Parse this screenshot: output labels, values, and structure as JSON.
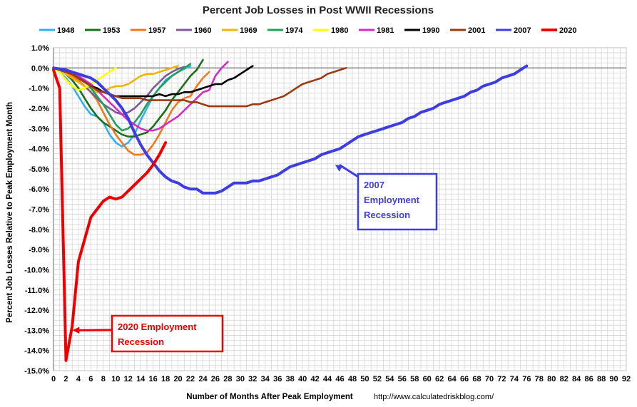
{
  "chart_data": {
    "type": "line",
    "title": "Percent Job Losses in Post WWII Recessions",
    "xlabel": "Number of Months After Peak Employment",
    "ylabel": "Percent Job Losses Relative to Peak Employment Month",
    "source": "http://www.calculatedriskblog.com/",
    "xlim": [
      0,
      92
    ],
    "ylim": [
      -15,
      1
    ],
    "x_ticks": [
      0,
      2,
      4,
      6,
      8,
      10,
      12,
      14,
      16,
      18,
      20,
      22,
      24,
      26,
      28,
      30,
      32,
      34,
      36,
      38,
      40,
      42,
      44,
      46,
      48,
      50,
      52,
      54,
      56,
      58,
      60,
      62,
      64,
      66,
      68,
      70,
      72,
      74,
      76,
      78,
      80,
      82,
      84,
      86,
      88,
      90,
      92
    ],
    "y_ticks": [
      1,
      0,
      -1,
      -2,
      -3,
      -4,
      -5,
      -6,
      -7,
      -8,
      -9,
      -10,
      -11,
      -12,
      -13,
      -14,
      -15
    ],
    "y_tick_labels": [
      "1.0%",
      "0.0%",
      "-1.0%",
      "-2.0%",
      "-3.0%",
      "-4.0%",
      "-5.0%",
      "-6.0%",
      "-7.0%",
      "-8.0%",
      "-9.0%",
      "-10.0%",
      "-11.0%",
      "-12.0%",
      "-13.0%",
      "-14.0%",
      "-15.0%"
    ],
    "grid": true,
    "legend_position": "top",
    "series": [
      {
        "name": "1948",
        "color": "#33b0f0",
        "x": [
          0,
          1,
          2,
          3,
          4,
          5,
          6,
          7,
          8,
          9,
          10,
          11,
          12,
          13,
          14,
          15,
          16,
          17,
          18,
          19,
          20,
          21,
          22
        ],
        "y": [
          0,
          -0.2,
          -0.5,
          -0.9,
          -1.4,
          -1.9,
          -2.3,
          -2.4,
          -2.7,
          -3.3,
          -3.7,
          -3.9,
          -3.7,
          -3.3,
          -2.6,
          -2.0,
          -1.4,
          -1.0,
          -0.6,
          -0.4,
          -0.2,
          -0.05,
          0.1
        ]
      },
      {
        "name": "1953",
        "color": "#1b6f1b",
        "x": [
          0,
          1,
          2,
          3,
          4,
          5,
          6,
          7,
          8,
          9,
          10,
          11,
          12,
          13,
          14,
          15,
          16,
          17,
          18,
          19,
          20,
          21,
          22,
          23,
          24
        ],
        "y": [
          0,
          -0.1,
          -0.3,
          -0.6,
          -1.0,
          -1.5,
          -2.0,
          -2.4,
          -2.7,
          -2.9,
          -3.1,
          -3.3,
          -3.4,
          -3.4,
          -3.3,
          -3.2,
          -2.9,
          -2.5,
          -2.1,
          -1.6,
          -1.2,
          -0.8,
          -0.4,
          -0.1,
          0.4
        ]
      },
      {
        "name": "1957",
        "color": "#f07820",
        "x": [
          0,
          1,
          2,
          3,
          4,
          5,
          6,
          7,
          8,
          9,
          10,
          11,
          12,
          13,
          14,
          15,
          16,
          17,
          18,
          19,
          20,
          21,
          22,
          23,
          24,
          25
        ],
        "y": [
          0,
          -0.1,
          -0.2,
          -0.4,
          -0.6,
          -0.9,
          -1.2,
          -1.6,
          -2.2,
          -2.8,
          -3.3,
          -3.7,
          -4.1,
          -4.3,
          -4.3,
          -4.2,
          -3.8,
          -3.3,
          -2.7,
          -2.1,
          -1.7,
          -1.5,
          -1.4,
          -0.9,
          -0.5,
          -0.2
        ]
      },
      {
        "name": "1960",
        "color": "#7a5a9a",
        "x": [
          0,
          1,
          2,
          3,
          4,
          5,
          6,
          7,
          8,
          9,
          10,
          11,
          12,
          13,
          14,
          15,
          16,
          17,
          18,
          19,
          20,
          21
        ],
        "y": [
          0,
          -0.1,
          -0.3,
          -0.5,
          -0.7,
          -0.9,
          -1.2,
          -1.5,
          -1.8,
          -2.0,
          -2.2,
          -2.3,
          -2.2,
          -2.0,
          -1.7,
          -1.4,
          -1.0,
          -0.7,
          -0.4,
          -0.2,
          -0.05,
          0.05
        ]
      },
      {
        "name": "1969",
        "color": "#f0b400",
        "x": [
          0,
          1,
          2,
          3,
          4,
          5,
          6,
          7,
          8,
          9,
          10,
          11,
          12,
          13,
          14,
          15,
          16,
          17,
          18,
          19,
          20
        ],
        "y": [
          0,
          -0.1,
          -0.3,
          -0.5,
          -0.7,
          -0.9,
          -1.0,
          -1.2,
          -1.2,
          -1.0,
          -0.9,
          -0.9,
          -0.8,
          -0.6,
          -0.4,
          -0.3,
          -0.3,
          -0.2,
          -0.1,
          0.0,
          0.1
        ]
      },
      {
        "name": "1974",
        "color": "#22a05a",
        "x": [
          0,
          1,
          2,
          3,
          4,
          5,
          6,
          7,
          8,
          9,
          10,
          11,
          12,
          13,
          14,
          15,
          16,
          17,
          18,
          19,
          20,
          21,
          22
        ],
        "y": [
          0,
          -0.05,
          -0.1,
          -0.2,
          -0.4,
          -0.6,
          -1.0,
          -1.4,
          -1.8,
          -2.3,
          -2.8,
          -3.1,
          -3.0,
          -2.7,
          -2.3,
          -1.8,
          -1.4,
          -1.0,
          -0.7,
          -0.4,
          -0.2,
          0.0,
          0.2
        ]
      },
      {
        "name": "1980",
        "color": "#ffff00",
        "x": [
          0,
          1,
          2,
          3,
          4,
          5,
          6,
          7,
          8,
          9,
          10
        ],
        "y": [
          0,
          -0.2,
          -0.6,
          -0.9,
          -1.1,
          -1.0,
          -0.8,
          -0.6,
          -0.4,
          -0.2,
          0.0
        ]
      },
      {
        "name": "1981",
        "color": "#d62ac0",
        "x": [
          0,
          1,
          2,
          3,
          4,
          5,
          6,
          7,
          8,
          9,
          10,
          11,
          12,
          13,
          14,
          15,
          16,
          17,
          18,
          19,
          20,
          21,
          22,
          23,
          24,
          25,
          26,
          27,
          28
        ],
        "y": [
          0,
          -0.1,
          -0.2,
          -0.3,
          -0.4,
          -0.6,
          -0.8,
          -1.1,
          -1.4,
          -1.7,
          -2.0,
          -2.3,
          -2.6,
          -2.8,
          -3.0,
          -3.1,
          -3.1,
          -3.0,
          -2.8,
          -2.6,
          -2.4,
          -2.1,
          -1.8,
          -1.5,
          -1.2,
          -1.1,
          -0.4,
          0.0,
          0.3
        ]
      },
      {
        "name": "1990",
        "color": "#000000",
        "x": [
          0,
          1,
          2,
          3,
          4,
          5,
          6,
          7,
          8,
          9,
          10,
          11,
          12,
          13,
          14,
          15,
          16,
          17,
          18,
          19,
          20,
          21,
          22,
          23,
          24,
          25,
          26,
          27,
          28,
          29,
          30,
          31,
          32
        ],
        "y": [
          0,
          -0.1,
          -0.2,
          -0.3,
          -0.5,
          -0.7,
          -0.9,
          -1.0,
          -1.2,
          -1.3,
          -1.4,
          -1.4,
          -1.4,
          -1.4,
          -1.4,
          -1.4,
          -1.4,
          -1.3,
          -1.4,
          -1.3,
          -1.3,
          -1.2,
          -1.2,
          -1.1,
          -1.0,
          -0.9,
          -0.8,
          -0.8,
          -0.6,
          -0.5,
          -0.3,
          -0.1,
          0.1
        ]
      },
      {
        "name": "2001",
        "color": "#9a3a10",
        "x": [
          0,
          1,
          2,
          3,
          4,
          5,
          6,
          7,
          8,
          9,
          10,
          11,
          12,
          13,
          14,
          15,
          16,
          17,
          18,
          19,
          20,
          21,
          22,
          23,
          24,
          25,
          26,
          27,
          28,
          29,
          30,
          31,
          32,
          33,
          34,
          35,
          36,
          37,
          38,
          39,
          40,
          41,
          42,
          43,
          44,
          45,
          46,
          47
        ],
        "y": [
          0,
          -0.1,
          -0.2,
          -0.3,
          -0.5,
          -0.7,
          -0.9,
          -1.1,
          -1.2,
          -1.3,
          -1.4,
          -1.5,
          -1.5,
          -1.5,
          -1.5,
          -1.6,
          -1.6,
          -1.6,
          -1.6,
          -1.6,
          -1.6,
          -1.6,
          -1.7,
          -1.7,
          -1.8,
          -1.9,
          -1.9,
          -1.9,
          -1.9,
          -1.9,
          -1.9,
          -1.9,
          -1.8,
          -1.8,
          -1.7,
          -1.6,
          -1.5,
          -1.4,
          -1.2,
          -1.0,
          -0.8,
          -0.7,
          -0.6,
          -0.5,
          -0.3,
          -0.2,
          -0.1,
          0.0
        ]
      },
      {
        "name": "2007",
        "color": "#3d3de0",
        "x": [
          0,
          1,
          2,
          3,
          4,
          5,
          6,
          7,
          8,
          9,
          10,
          11,
          12,
          13,
          14,
          15,
          16,
          17,
          18,
          19,
          20,
          21,
          22,
          23,
          24,
          25,
          26,
          27,
          28,
          29,
          30,
          31,
          32,
          33,
          34,
          35,
          36,
          37,
          38,
          39,
          40,
          41,
          42,
          43,
          44,
          45,
          46,
          47,
          48,
          49,
          50,
          51,
          52,
          53,
          54,
          55,
          56,
          57,
          58,
          59,
          60,
          61,
          62,
          63,
          64,
          65,
          66,
          67,
          68,
          69,
          70,
          71,
          72,
          73,
          74,
          75,
          76
        ],
        "y": [
          0,
          -0.05,
          -0.1,
          -0.2,
          -0.3,
          -0.4,
          -0.5,
          -0.7,
          -1.0,
          -1.3,
          -1.6,
          -2.0,
          -2.5,
          -3.2,
          -3.8,
          -4.3,
          -4.7,
          -5.1,
          -5.4,
          -5.6,
          -5.7,
          -5.9,
          -6.0,
          -6.0,
          -6.2,
          -6.2,
          -6.2,
          -6.1,
          -5.9,
          -5.7,
          -5.7,
          -5.7,
          -5.6,
          -5.6,
          -5.5,
          -5.4,
          -5.3,
          -5.1,
          -4.9,
          -4.8,
          -4.7,
          -4.6,
          -4.5,
          -4.3,
          -4.2,
          -4.1,
          -4.0,
          -3.8,
          -3.6,
          -3.4,
          -3.3,
          -3.2,
          -3.1,
          -3.0,
          -2.9,
          -2.8,
          -2.7,
          -2.5,
          -2.4,
          -2.2,
          -2.1,
          -2.0,
          -1.8,
          -1.7,
          -1.6,
          -1.5,
          -1.4,
          -1.2,
          -1.1,
          -0.9,
          -0.8,
          -0.7,
          -0.5,
          -0.4,
          -0.3,
          -0.1,
          0.1
        ]
      },
      {
        "name": "2020",
        "color": "#ee0000",
        "x": [
          0,
          1,
          2,
          3,
          4,
          5,
          6,
          7,
          8,
          9,
          10,
          11,
          12,
          13,
          14,
          15,
          16,
          17,
          18
        ],
        "y": [
          -0.1,
          -1.0,
          -14.5,
          -12.8,
          -9.6,
          -8.5,
          -7.4,
          -7.0,
          -6.6,
          -6.4,
          -6.5,
          -6.4,
          -6.1,
          -5.8,
          -5.5,
          -5.2,
          -4.8,
          -4.3,
          -3.7
        ]
      }
    ],
    "annotations": [
      {
        "id": "ann-2007",
        "lines": [
          "2007",
          "Employment",
          "Recession"
        ],
        "color": "#3d3de0",
        "points_to": {
          "x": 45,
          "y": -4.8
        }
      },
      {
        "id": "ann-2020",
        "lines": [
          "2020 Employment",
          "Recession"
        ],
        "color": "#ee0000",
        "points_to": {
          "x": 2.8,
          "y": -13.0
        }
      }
    ]
  }
}
